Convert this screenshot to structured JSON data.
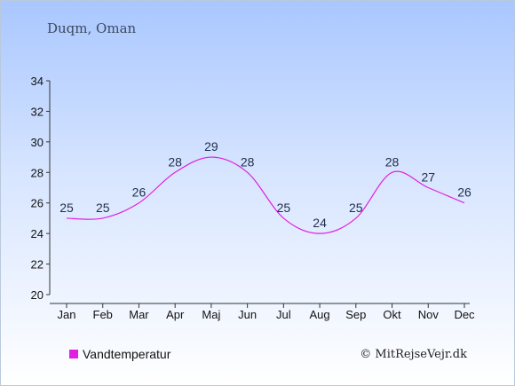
{
  "location": "Duqm, Oman",
  "credit": "© MitRejseVejr.dk",
  "chart_data": {
    "type": "line",
    "categories": [
      "Jan",
      "Feb",
      "Mar",
      "Apr",
      "Maj",
      "Jun",
      "Jul",
      "Aug",
      "Sep",
      "Okt",
      "Nov",
      "Dec"
    ],
    "series": [
      {
        "name": "Vandtemperatur",
        "values": [
          25,
          25,
          26,
          28,
          29,
          28,
          25,
          24,
          25,
          28,
          27,
          26
        ],
        "color": "#e020e0"
      }
    ],
    "yticks": [
      20,
      22,
      24,
      26,
      28,
      30,
      32,
      34
    ],
    "ylim": [
      20,
      34
    ],
    "grid": false,
    "legend": "bottom-left"
  }
}
